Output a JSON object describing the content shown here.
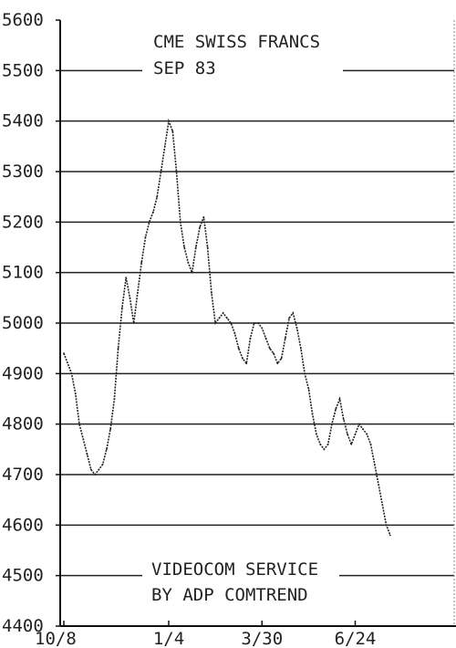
{
  "chart_data": {
    "type": "line",
    "title": "CME SWISS FRANCS",
    "subtitle": "SEP 83",
    "footer": [
      "VIDEOCOM SERVICE",
      "BY ADP COMTREND"
    ],
    "xlabel": "",
    "ylabel": "",
    "ylim": [
      4400,
      5600
    ],
    "yticks": [
      4400,
      4500,
      4600,
      4700,
      4800,
      4900,
      5000,
      5100,
      5200,
      5300,
      5400,
      5500,
      5600
    ],
    "ytick_labels": [
      "4400",
      "4500",
      "4600",
      "4700",
      "4800",
      "4900",
      "5000",
      "5100",
      "5200",
      "5300",
      "5400",
      "5500",
      "5600"
    ],
    "xlim": [
      0,
      100
    ],
    "xticks": [
      {
        "x": 0,
        "label": "10/8"
      },
      {
        "x": 27,
        "label": "1/4"
      },
      {
        "x": 51,
        "label": "3/30"
      },
      {
        "x": 75,
        "label": "6/24"
      }
    ],
    "grid": true,
    "series": [
      {
        "values": [
          [
            0,
            4940
          ],
          [
            2,
            4900
          ],
          [
            3,
            4860
          ],
          [
            4,
            4800
          ],
          [
            5,
            4770
          ],
          [
            6,
            4740
          ],
          [
            7,
            4710
          ],
          [
            8,
            4700
          ],
          [
            9,
            4710
          ],
          [
            10,
            4720
          ],
          [
            11,
            4750
          ],
          [
            12,
            4790
          ],
          [
            13,
            4850
          ],
          [
            14,
            4950
          ],
          [
            15,
            5030
          ],
          [
            16,
            5090
          ],
          [
            17,
            5050
          ],
          [
            18,
            5000
          ],
          [
            19,
            5060
          ],
          [
            20,
            5120
          ],
          [
            21,
            5170
          ],
          [
            22,
            5200
          ],
          [
            23,
            5220
          ],
          [
            24,
            5250
          ],
          [
            25,
            5300
          ],
          [
            26,
            5350
          ],
          [
            27,
            5400
          ],
          [
            28,
            5380
          ],
          [
            29,
            5300
          ],
          [
            30,
            5200
          ],
          [
            31,
            5150
          ],
          [
            32,
            5120
          ],
          [
            33,
            5100
          ],
          [
            34,
            5150
          ],
          [
            35,
            5190
          ],
          [
            36,
            5210
          ],
          [
            37,
            5150
          ],
          [
            38,
            5060
          ],
          [
            39,
            5000
          ],
          [
            40,
            5010
          ],
          [
            41,
            5020
          ],
          [
            42,
            5010
          ],
          [
            43,
            5000
          ],
          [
            44,
            4980
          ],
          [
            45,
            4950
          ],
          [
            46,
            4930
          ],
          [
            47,
            4920
          ],
          [
            48,
            4970
          ],
          [
            49,
            5000
          ],
          [
            50,
            5000
          ],
          [
            51,
            4990
          ],
          [
            52,
            4970
          ],
          [
            53,
            4950
          ],
          [
            54,
            4940
          ],
          [
            55,
            4920
          ],
          [
            56,
            4930
          ],
          [
            57,
            4970
          ],
          [
            58,
            5010
          ],
          [
            59,
            5020
          ],
          [
            60,
            4990
          ],
          [
            61,
            4950
          ],
          [
            62,
            4900
          ],
          [
            63,
            4870
          ],
          [
            64,
            4820
          ],
          [
            65,
            4780
          ],
          [
            66,
            4760
          ],
          [
            67,
            4750
          ],
          [
            68,
            4760
          ],
          [
            69,
            4800
          ],
          [
            70,
            4830
          ],
          [
            71,
            4850
          ],
          [
            72,
            4810
          ],
          [
            73,
            4780
          ],
          [
            74,
            4760
          ],
          [
            75,
            4780
          ],
          [
            76,
            4800
          ],
          [
            77,
            4790
          ],
          [
            78,
            4780
          ],
          [
            79,
            4760
          ],
          [
            80,
            4720
          ],
          [
            81,
            4680
          ],
          [
            82,
            4640
          ],
          [
            83,
            4600
          ],
          [
            84,
            4580
          ]
        ]
      }
    ]
  }
}
